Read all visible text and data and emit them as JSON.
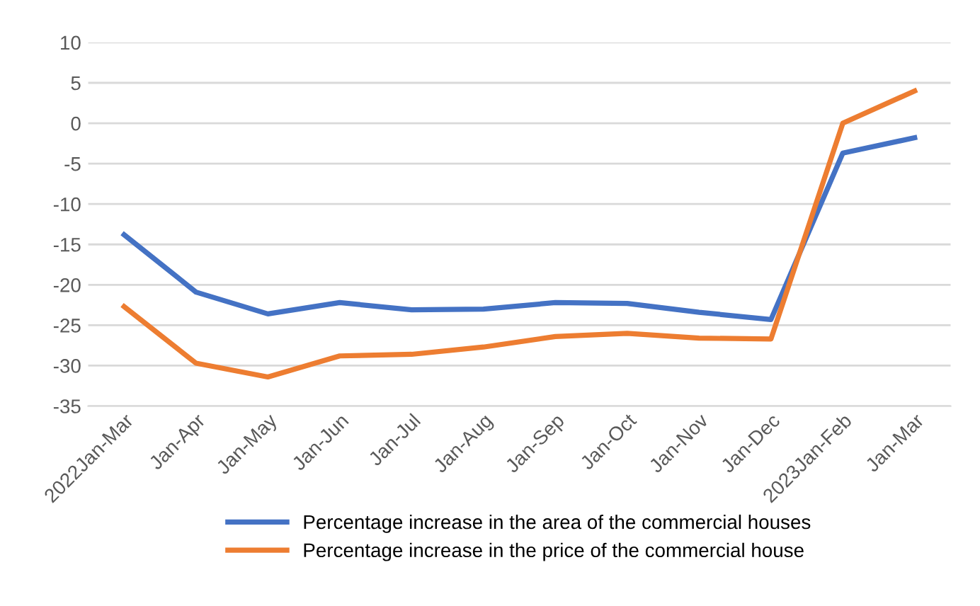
{
  "chart_data": {
    "type": "line",
    "categories": [
      "2022Jan-Mar",
      "Jan-Apr",
      "Jan-May",
      "Jan-Jun",
      "Jan-Jul",
      "Jan-Aug",
      "Jan-Sep",
      "Jan-Oct",
      "Jan-Nov",
      "Jan-Dec",
      "2023Jan-Feb",
      "Jan-Mar"
    ],
    "series": [
      {
        "name": "Percentage increase in the area of the commercial houses",
        "color": "#4472c4",
        "values": [
          -13.8,
          -20.9,
          -23.6,
          -22.2,
          -23.1,
          -23.0,
          -22.2,
          -22.3,
          -23.4,
          -24.3,
          -3.7,
          -1.8
        ]
      },
      {
        "name": "Percentage increase in the price of the commercial house",
        "color": "#ed7d31",
        "values": [
          -22.7,
          -29.7,
          -31.4,
          -28.8,
          -28.6,
          -27.7,
          -26.4,
          -26.0,
          -26.6,
          -26.7,
          0.0,
          4.0
        ]
      }
    ],
    "ylim": [
      -35,
      10
    ],
    "yticks": [
      -35,
      -30,
      -25,
      -20,
      -15,
      -10,
      -5,
      0,
      5,
      10
    ],
    "grid": "y",
    "legend": "bottom",
    "marker": "none",
    "line_style": "solid"
  }
}
